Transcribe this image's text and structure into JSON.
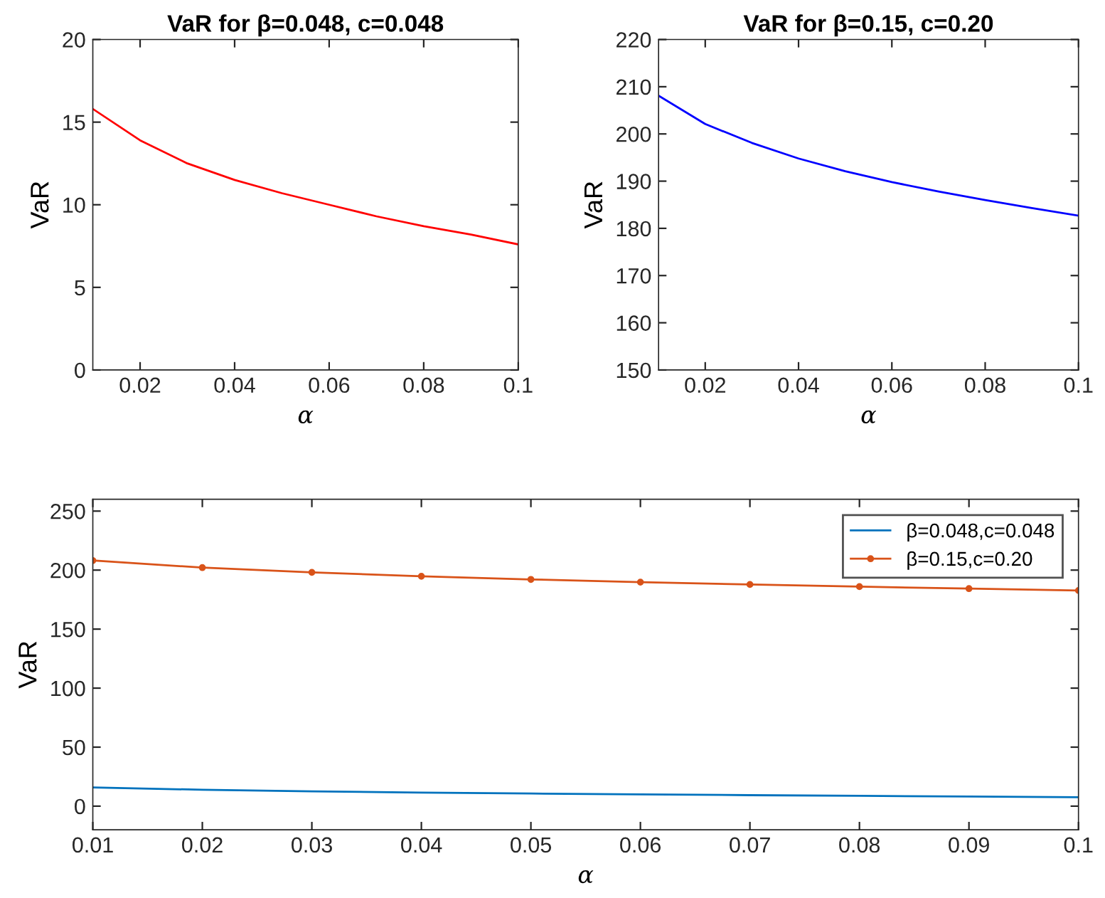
{
  "chart_data": [
    {
      "type": "line",
      "title": "VaR for β=0.048, c=0.048",
      "xlabel": "α",
      "ylabel": "VaR",
      "x": [
        0.01,
        0.02,
        0.03,
        0.04,
        0.05,
        0.06,
        0.07,
        0.08,
        0.09,
        0.1
      ],
      "series": [
        {
          "color": "#ff0000",
          "values": [
            15.8,
            13.9,
            12.5,
            11.5,
            10.7,
            10.0,
            9.3,
            8.7,
            8.2,
            7.6
          ]
        }
      ],
      "xlim": [
        0.01,
        0.1
      ],
      "xticks": [
        0.02,
        0.04,
        0.06,
        0.08,
        0.1
      ],
      "ylim": [
        0,
        20
      ],
      "yticks": [
        0,
        5,
        10,
        15,
        20
      ],
      "grid": false,
      "legend": false
    },
    {
      "type": "line",
      "title": "VaR for β=0.15, c=0.20",
      "xlabel": "α",
      "ylabel": "VaR",
      "x": [
        0.01,
        0.02,
        0.03,
        0.04,
        0.05,
        0.06,
        0.07,
        0.08,
        0.09,
        0.1
      ],
      "series": [
        {
          "color": "#0000ff",
          "values": [
            208.1,
            202.1,
            198.1,
            194.8,
            192.1,
            189.8,
            187.8,
            186.0,
            184.3,
            182.7
          ]
        }
      ],
      "xlim": [
        0.01,
        0.1
      ],
      "xticks": [
        0.02,
        0.04,
        0.06,
        0.08,
        0.1
      ],
      "ylim": [
        150,
        220
      ],
      "yticks": [
        150,
        160,
        170,
        180,
        190,
        200,
        210,
        220
      ],
      "grid": false,
      "legend": false
    },
    {
      "type": "line",
      "xlabel": "α",
      "ylabel": "VaR",
      "x": [
        0.01,
        0.02,
        0.03,
        0.04,
        0.05,
        0.06,
        0.07,
        0.08,
        0.09,
        0.1
      ],
      "series": [
        {
          "name": "β=0.048,c=0.048",
          "color": "#0072bd",
          "marker": "none",
          "values": [
            15.8,
            13.9,
            12.5,
            11.5,
            10.7,
            10.0,
            9.3,
            8.7,
            8.2,
            7.6
          ]
        },
        {
          "name": "β=0.15,c=0.20",
          "color": "#d95319",
          "marker": "circle",
          "values": [
            208.1,
            202.1,
            198.1,
            194.8,
            192.1,
            189.8,
            187.8,
            186.0,
            184.3,
            182.7
          ]
        }
      ],
      "xlim": [
        0.01,
        0.1
      ],
      "xticks": [
        0.01,
        0.02,
        0.03,
        0.04,
        0.05,
        0.06,
        0.07,
        0.08,
        0.09,
        0.1
      ],
      "ylim": [
        -20,
        260
      ],
      "yticks": [
        0,
        50,
        100,
        150,
        200,
        250
      ],
      "grid": false,
      "legend": "top right"
    }
  ]
}
